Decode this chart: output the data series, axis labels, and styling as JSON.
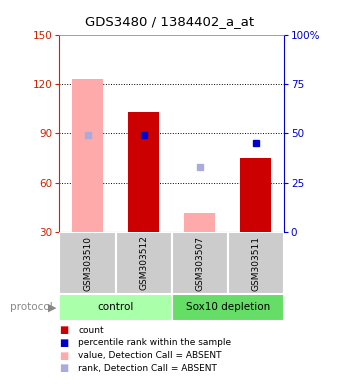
{
  "title": "GDS3480 / 1384402_a_at",
  "samples": [
    "GSM303510",
    "GSM303512",
    "GSM303507",
    "GSM303511"
  ],
  "count_values": [
    null,
    103,
    null,
    75
  ],
  "count_absent": [
    123,
    null,
    42,
    null
  ],
  "rank_pct_present": [
    null,
    49,
    null,
    45
  ],
  "rank_pct_absent": [
    49,
    null,
    33,
    null
  ],
  "ylim_left": [
    30,
    150
  ],
  "ylim_right": [
    0,
    100
  ],
  "yticks_left": [
    30,
    60,
    90,
    120,
    150
  ],
  "yticks_right": [
    0,
    25,
    50,
    75,
    100
  ],
  "left_axis_color": "#cc2200",
  "right_axis_color": "#0000cc",
  "bar_color_present": "#cc0000",
  "bar_color_absent": "#ffaaaa",
  "rank_color_present": "#0000cc",
  "rank_color_absent": "#aaaadd",
  "bg_sample_area": "#cccccc",
  "bg_group_control": "#aaffaa",
  "bg_group_sox10": "#66dd66",
  "protocol_color": "#888888",
  "bar_width": 0.55
}
